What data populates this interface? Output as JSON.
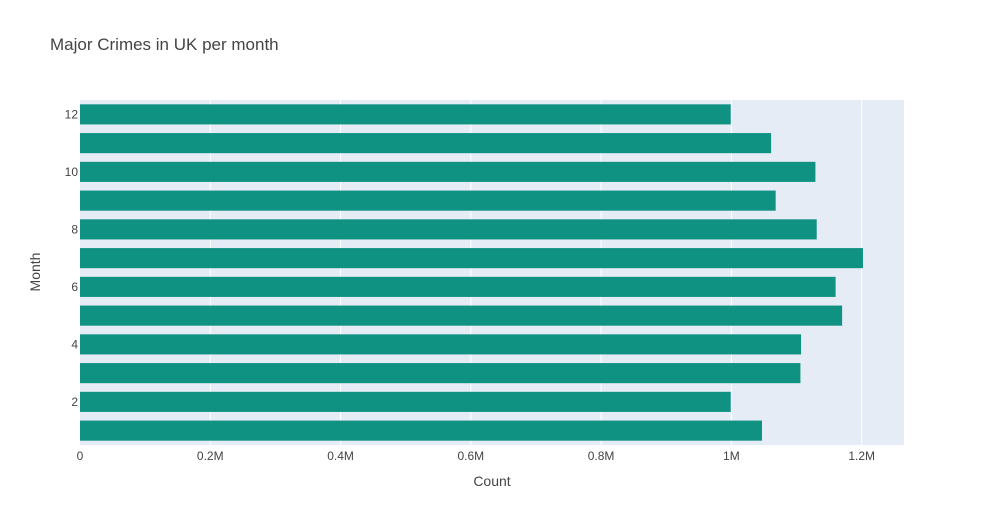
{
  "chart_data": {
    "type": "bar",
    "orientation": "horizontal",
    "title": "Major Crimes in UK per month",
    "xlabel": "Count",
    "ylabel": "Month",
    "categories": [
      1,
      2,
      3,
      4,
      5,
      6,
      7,
      8,
      9,
      10,
      11,
      12
    ],
    "values": [
      1047000,
      999000,
      1106000,
      1107000,
      1170000,
      1160000,
      1202000,
      1131000,
      1068000,
      1129000,
      1061000,
      999000
    ],
    "xlim": [
      0,
      1265000
    ],
    "ylim": [
      0.5,
      12.5
    ],
    "x_ticks": [
      0,
      200000,
      400000,
      600000,
      800000,
      1000000,
      1200000
    ],
    "x_tick_labels": [
      "0",
      "0.2M",
      "0.4M",
      "0.6M",
      "0.8M",
      "1M",
      "1.2M"
    ],
    "y_ticks": [
      2,
      4,
      6,
      8,
      10,
      12
    ],
    "y_tick_labels": [
      "2",
      "4",
      "6",
      "8",
      "10",
      "12"
    ],
    "grid": true,
    "bar_color": "#109283",
    "plot_background": "#e5ecf6",
    "grid_color": "#ffffff"
  }
}
